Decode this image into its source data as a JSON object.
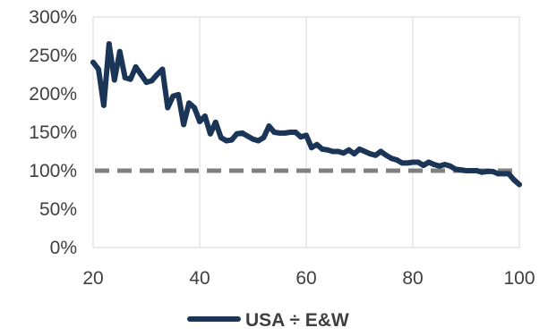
{
  "chart_data": {
    "type": "line",
    "title": "",
    "xlabel": "",
    "ylabel": "",
    "xlim": [
      20,
      100
    ],
    "ylim": [
      0,
      300
    ],
    "x_ticks": [
      20,
      40,
      60,
      80,
      100
    ],
    "x_tick_labels": [
      "20",
      "40",
      "60",
      "80",
      "100"
    ],
    "y_ticks": [
      0,
      50,
      100,
      150,
      200,
      250,
      300
    ],
    "y_tick_labels": [
      "0%",
      "50%",
      "100%",
      "150%",
      "200%",
      "250%",
      "300%"
    ],
    "grid": "vertical",
    "legend": {
      "placement": "bottom-center"
    },
    "reference_line": {
      "y": 100,
      "style": "dashed",
      "color": "#808080"
    },
    "series": [
      {
        "name": "USA ÷ E&W",
        "color": "#1b3557",
        "x": [
          20,
          21,
          22,
          23,
          24,
          25,
          26,
          27,
          28,
          29,
          30,
          31,
          32,
          33,
          34,
          35,
          36,
          37,
          38,
          39,
          40,
          41,
          42,
          43,
          44,
          45,
          46,
          47,
          48,
          49,
          50,
          51,
          52,
          53,
          54,
          55,
          56,
          57,
          58,
          59,
          60,
          61,
          62,
          63,
          64,
          65,
          66,
          67,
          68,
          69,
          70,
          71,
          72,
          73,
          74,
          75,
          76,
          77,
          78,
          79,
          80,
          81,
          82,
          83,
          84,
          85,
          86,
          87,
          88,
          89,
          90,
          91,
          92,
          93,
          94,
          95,
          96,
          97,
          98,
          99,
          100
        ],
        "y": [
          241,
          232,
          185,
          265,
          218,
          255,
          221,
          219,
          235,
          225,
          215,
          217,
          225,
          232,
          182,
          197,
          199,
          160,
          188,
          182,
          164,
          171,
          148,
          163,
          143,
          139,
          140,
          148,
          149,
          145,
          141,
          139,
          143,
          158,
          150,
          149,
          149,
          150,
          150,
          144,
          146,
          130,
          134,
          128,
          127,
          125,
          125,
          123,
          127,
          122,
          128,
          125,
          122,
          120,
          125,
          120,
          116,
          114,
          110,
          110,
          111,
          111,
          107,
          111,
          108,
          106,
          108,
          106,
          102,
          101,
          100,
          100,
          100,
          98,
          99,
          99,
          96,
          96,
          96,
          88,
          82
        ]
      }
    ]
  }
}
